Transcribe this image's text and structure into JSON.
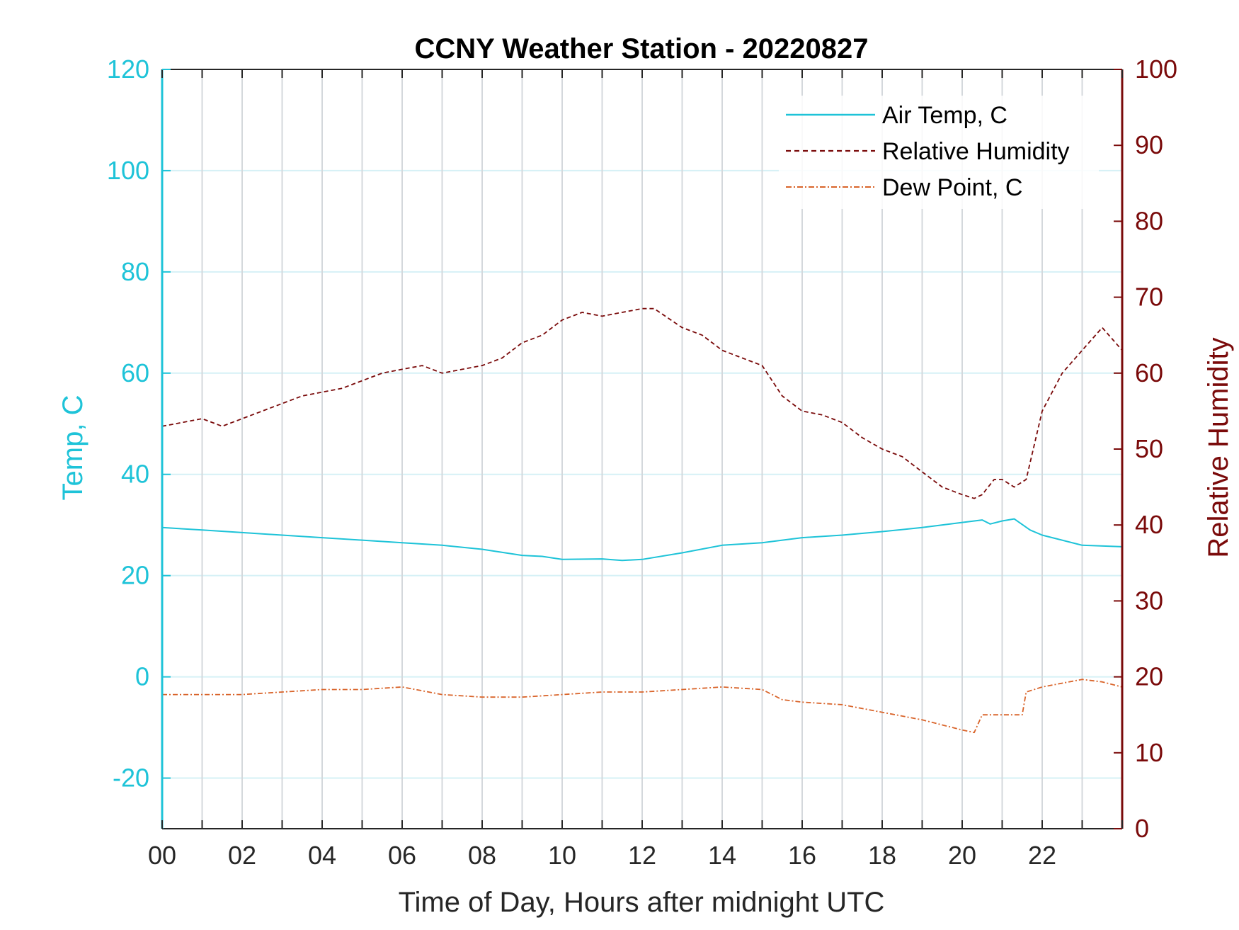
{
  "chart_data": {
    "type": "line",
    "title": "CCNY Weather Station - 20220827",
    "xlabel": "Time of Day, Hours after midnight UTC",
    "ylabel_left": "Temp, C",
    "ylabel_right": "Relative Humidity",
    "xlim": [
      0,
      24
    ],
    "ylim_left": [
      -30,
      120
    ],
    "ylim_right": [
      0,
      100
    ],
    "x_tick_labels": [
      "00",
      "02",
      "04",
      "06",
      "08",
      "10",
      "12",
      "14",
      "16",
      "18",
      "20",
      "22"
    ],
    "left_tick_labels": [
      "-20",
      "0",
      "20",
      "40",
      "60",
      "80",
      "100",
      "120"
    ],
    "right_tick_labels": [
      "0",
      "10",
      "20",
      "30",
      "40",
      "50",
      "60",
      "70",
      "80",
      "90",
      "100"
    ],
    "colors": {
      "air_temp": "#1ec3d8",
      "relative_humidity": "#7a0a0a",
      "dew_point": "#d9642a",
      "grid_vertical": "#d4d8dc",
      "grid_horizontal": "#d6f1f6",
      "axis": "#262626"
    },
    "legend": {
      "location": "top-right",
      "entries": [
        "Air Temp, C",
        "Relative Humidity",
        "Dew Point, C"
      ]
    },
    "series": [
      {
        "name": "Air Temp, C",
        "axis": "left",
        "style": "solid",
        "x": [
          0,
          1,
          2,
          3,
          4,
          5,
          6,
          7,
          8,
          9,
          9.5,
          10,
          11,
          11.5,
          12,
          13,
          14,
          15,
          16,
          17,
          18,
          19,
          20,
          20.5,
          20.7,
          21,
          21.3,
          21.7,
          22,
          23,
          24
        ],
        "values": [
          29.5,
          29,
          28.5,
          28,
          27.5,
          27,
          26.5,
          26,
          25.2,
          24,
          23.8,
          23.2,
          23.3,
          23,
          23.2,
          24.5,
          26,
          26.5,
          27.5,
          28,
          28.7,
          29.5,
          30.5,
          31,
          30.2,
          30.8,
          31.2,
          29,
          28,
          26,
          25.7
        ]
      },
      {
        "name": "Relative Humidity",
        "axis": "right",
        "style": "dashed",
        "x": [
          0,
          0.5,
          1,
          1.5,
          2,
          2.5,
          3,
          3.5,
          4,
          4.5,
          5,
          5.5,
          6,
          6.5,
          7,
          7.5,
          8,
          8.5,
          9,
          9.5,
          10,
          10.5,
          11,
          11.5,
          12,
          12.3,
          13,
          13.5,
          14,
          14.5,
          15,
          15.5,
          16,
          16.5,
          17,
          17.5,
          18,
          18.5,
          19,
          19.5,
          20,
          20.3,
          20.5,
          20.8,
          21,
          21.3,
          21.6,
          22,
          22.5,
          23,
          23.5,
          24
        ],
        "values": [
          53,
          53.5,
          54,
          53,
          54,
          55,
          56,
          57,
          57.5,
          58,
          59,
          60,
          60.5,
          61,
          60,
          60.5,
          61,
          62,
          64,
          65,
          67,
          68,
          67.5,
          68,
          68.5,
          68.5,
          66,
          65,
          63,
          62,
          61,
          57,
          55,
          54.5,
          53.5,
          51.5,
          50,
          49,
          47,
          45,
          44,
          43.5,
          44,
          46,
          46,
          45,
          46,
          55,
          60,
          63,
          66,
          63
        ]
      },
      {
        "name": "Dew Point, C",
        "axis": "left",
        "style": "dashdot",
        "x": [
          0,
          1,
          2,
          3,
          4,
          5,
          6,
          7,
          8,
          9,
          10,
          11,
          12,
          13,
          14,
          15,
          15.5,
          16,
          17,
          18,
          19,
          20,
          20.3,
          20.5,
          21,
          21.5,
          21.6,
          22,
          23,
          23.5,
          24
        ],
        "values": [
          -3.5,
          -3.5,
          -3.5,
          -3,
          -2.5,
          -2.5,
          -2,
          -3.5,
          -4,
          -4,
          -3.5,
          -3,
          -3,
          -2.5,
          -2,
          -2.5,
          -4.5,
          -5,
          -5.5,
          -7,
          -8.5,
          -10.5,
          -11,
          -7.5,
          -7.5,
          -7.5,
          -3,
          -2,
          -0.5,
          -1,
          -2
        ]
      }
    ]
  }
}
